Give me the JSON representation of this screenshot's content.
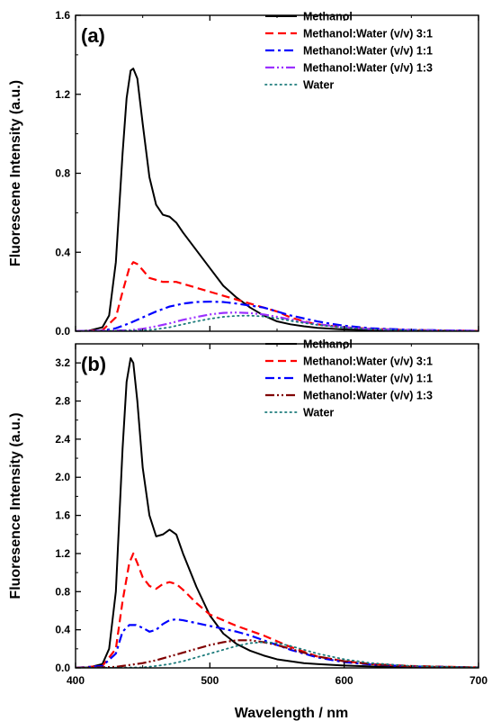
{
  "chart_data": [
    {
      "type": "line",
      "panel_label": "(a)",
      "xlabel": "",
      "ylabel": "Fluorescene Intensity (a.u.)",
      "xlim": [
        400,
        700
      ],
      "ylim": [
        0,
        1.6
      ],
      "yticks": [
        0.0,
        0.4,
        0.8,
        1.2,
        1.6
      ],
      "ytick_labels": [
        "0.0",
        "0.4",
        "0.8",
        "1.2",
        "1.6"
      ],
      "legend_position": "top-right",
      "series": [
        {
          "name": "Methanol",
          "color": "#000000",
          "dash": "solid",
          "x": [
            400,
            410,
            420,
            425,
            430,
            435,
            438,
            441,
            443,
            446,
            450,
            455,
            460,
            465,
            470,
            475,
            480,
            490,
            500,
            510,
            520,
            530,
            540,
            550,
            560,
            570,
            580,
            600,
            620,
            650,
            700
          ],
          "y": [
            0,
            0.003,
            0.02,
            0.08,
            0.35,
            0.9,
            1.18,
            1.32,
            1.33,
            1.28,
            1.05,
            0.78,
            0.64,
            0.59,
            0.58,
            0.55,
            0.5,
            0.41,
            0.32,
            0.23,
            0.17,
            0.12,
            0.08,
            0.05,
            0.035,
            0.025,
            0.017,
            0.009,
            0.005,
            0.003,
            0.001
          ]
        },
        {
          "name": "Methanol:Water (v/v) 3:1",
          "color": "#ff0000",
          "dash": "dashed",
          "x": [
            400,
            420,
            430,
            435,
            440,
            443,
            446,
            450,
            455,
            460,
            465,
            470,
            475,
            480,
            490,
            500,
            510,
            520,
            530,
            540,
            550,
            560,
            570,
            580,
            600,
            620,
            650,
            700
          ],
          "y": [
            0,
            0.005,
            0.07,
            0.2,
            0.32,
            0.35,
            0.34,
            0.31,
            0.27,
            0.26,
            0.25,
            0.25,
            0.25,
            0.24,
            0.22,
            0.2,
            0.18,
            0.16,
            0.14,
            0.12,
            0.1,
            0.07,
            0.05,
            0.035,
            0.02,
            0.012,
            0.006,
            0.002
          ]
        },
        {
          "name": "Methanol:Water (v/v) 1:1",
          "color": "#0000ff",
          "dash": "dashdot",
          "x": [
            400,
            420,
            430,
            440,
            450,
            460,
            470,
            480,
            490,
            500,
            510,
            520,
            530,
            540,
            550,
            560,
            570,
            580,
            590,
            600,
            620,
            650,
            700
          ],
          "y": [
            0,
            0.003,
            0.015,
            0.04,
            0.07,
            0.1,
            0.125,
            0.14,
            0.148,
            0.15,
            0.148,
            0.14,
            0.13,
            0.12,
            0.1,
            0.08,
            0.065,
            0.05,
            0.038,
            0.028,
            0.015,
            0.007,
            0.002
          ]
        },
        {
          "name": "Methanol:Water (v/v) 1:3",
          "color": "#9b30ff",
          "dash": "dashdotdot",
          "x": [
            400,
            440,
            450,
            460,
            470,
            480,
            490,
            500,
            510,
            520,
            530,
            540,
            550,
            560,
            570,
            580,
            600,
            620,
            650,
            700
          ],
          "y": [
            0,
            0.005,
            0.012,
            0.025,
            0.04,
            0.058,
            0.072,
            0.085,
            0.093,
            0.095,
            0.092,
            0.085,
            0.073,
            0.06,
            0.047,
            0.036,
            0.02,
            0.011,
            0.005,
            0.002
          ]
        },
        {
          "name": "Water",
          "color": "#1a7a7a",
          "dash": "dotted",
          "x": [
            400,
            450,
            460,
            470,
            480,
            490,
            500,
            510,
            520,
            530,
            540,
            550,
            560,
            570,
            580,
            600,
            620,
            650,
            700
          ],
          "y": [
            0,
            0.004,
            0.01,
            0.02,
            0.035,
            0.05,
            0.063,
            0.073,
            0.078,
            0.079,
            0.075,
            0.065,
            0.053,
            0.042,
            0.032,
            0.018,
            0.01,
            0.004,
            0.001
          ]
        }
      ]
    },
    {
      "type": "line",
      "panel_label": "(b)",
      "xlabel": "Wavelength / nm",
      "ylabel": "Fluoresence Intensity (a.u.)",
      "xlim": [
        400,
        700
      ],
      "ylim": [
        0,
        3.4
      ],
      "yticks": [
        0.0,
        0.4,
        0.8,
        1.2,
        1.6,
        2.0,
        2.4,
        2.8,
        3.2
      ],
      "ytick_labels": [
        "0.0",
        "0.4",
        "0.8",
        "1.2",
        "1.6",
        "2.0",
        "2.4",
        "2.8",
        "3.2"
      ],
      "xticks": [
        400,
        500,
        600,
        700
      ],
      "xtick_labels": [
        "400",
        "500",
        "600",
        "700"
      ],
      "legend_position": "top-right",
      "series": [
        {
          "name": "Methanol",
          "color": "#000000",
          "dash": "solid",
          "x": [
            400,
            410,
            420,
            425,
            430,
            435,
            438,
            441,
            443,
            446,
            450,
            455,
            460,
            465,
            470,
            475,
            480,
            490,
            500,
            510,
            520,
            530,
            540,
            550,
            560,
            570,
            580,
            600,
            620,
            650,
            700
          ],
          "y": [
            0,
            0.005,
            0.04,
            0.2,
            0.8,
            2.3,
            3.0,
            3.25,
            3.2,
            2.8,
            2.1,
            1.6,
            1.38,
            1.4,
            1.45,
            1.4,
            1.2,
            0.85,
            0.55,
            0.36,
            0.25,
            0.18,
            0.13,
            0.09,
            0.07,
            0.05,
            0.04,
            0.025,
            0.015,
            0.008,
            0.003
          ]
        },
        {
          "name": "Methanol:Water (v/v) 3:1",
          "color": "#ff0000",
          "dash": "dashed",
          "x": [
            400,
            420,
            430,
            435,
            440,
            443,
            446,
            450,
            455,
            460,
            465,
            470,
            475,
            480,
            490,
            500,
            510,
            520,
            530,
            540,
            550,
            560,
            570,
            580,
            600,
            620,
            650,
            700
          ],
          "y": [
            0,
            0.02,
            0.2,
            0.7,
            1.1,
            1.2,
            1.1,
            0.95,
            0.86,
            0.83,
            0.88,
            0.9,
            0.88,
            0.82,
            0.68,
            0.56,
            0.5,
            0.44,
            0.39,
            0.34,
            0.28,
            0.22,
            0.17,
            0.12,
            0.07,
            0.04,
            0.02,
            0.005
          ]
        },
        {
          "name": "Methanol:Water (v/v) 1:1",
          "color": "#0000ff",
          "dash": "dashdot",
          "x": [
            400,
            420,
            430,
            435,
            440,
            445,
            450,
            455,
            460,
            465,
            470,
            475,
            480,
            490,
            500,
            510,
            520,
            530,
            540,
            550,
            560,
            570,
            580,
            600,
            620,
            650,
            700
          ],
          "y": [
            0,
            0.02,
            0.15,
            0.38,
            0.45,
            0.45,
            0.42,
            0.38,
            0.4,
            0.46,
            0.5,
            0.51,
            0.5,
            0.47,
            0.44,
            0.41,
            0.38,
            0.34,
            0.29,
            0.24,
            0.19,
            0.15,
            0.11,
            0.06,
            0.035,
            0.015,
            0.004
          ]
        },
        {
          "name": "Methanol:Water (v/v) 1:3",
          "color": "#800000",
          "dash": "dashdotdot",
          "x": [
            400,
            430,
            440,
            450,
            460,
            470,
            480,
            490,
            500,
            510,
            520,
            530,
            540,
            550,
            560,
            570,
            580,
            600,
            620,
            650,
            700
          ],
          "y": [
            0,
            0.01,
            0.03,
            0.05,
            0.08,
            0.12,
            0.16,
            0.2,
            0.24,
            0.27,
            0.29,
            0.29,
            0.27,
            0.24,
            0.2,
            0.16,
            0.12,
            0.07,
            0.04,
            0.015,
            0.004
          ]
        },
        {
          "name": "Water",
          "color": "#1a7a7a",
          "dash": "dotted",
          "x": [
            400,
            450,
            460,
            470,
            480,
            490,
            500,
            510,
            520,
            530,
            540,
            550,
            560,
            570,
            580,
            600,
            620,
            650,
            700
          ],
          "y": [
            0,
            0.005,
            0.02,
            0.04,
            0.07,
            0.11,
            0.15,
            0.19,
            0.23,
            0.26,
            0.27,
            0.26,
            0.23,
            0.19,
            0.15,
            0.09,
            0.05,
            0.02,
            0.005
          ]
        }
      ]
    }
  ]
}
